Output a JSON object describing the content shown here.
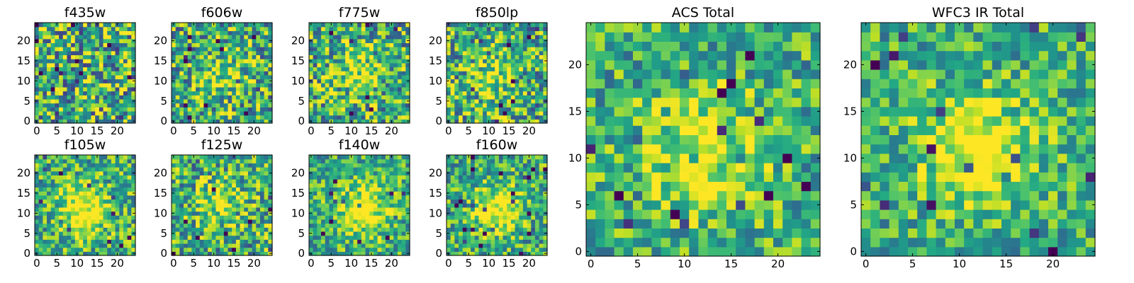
{
  "chart_data": [
    {
      "type": "heatmap",
      "title": "f435w",
      "xticks": [
        "0",
        "5",
        "10",
        "15",
        "20"
      ],
      "yticks": [
        "0",
        "5",
        "10",
        "15",
        "20"
      ],
      "xlim": [
        0,
        24
      ],
      "ylim": [
        0,
        24
      ],
      "grid": false,
      "colormap": "viridis",
      "blob": {
        "cx": 12,
        "cy": 12,
        "amp": 0.05,
        "sigma": 4
      },
      "noise": 0.45,
      "seed": 3
    },
    {
      "type": "heatmap",
      "title": "f606w",
      "xticks": [
        "0",
        "5",
        "10",
        "15",
        "20"
      ],
      "yticks": [
        "0",
        "5",
        "10",
        "15",
        "20"
      ],
      "xlim": [
        0,
        24
      ],
      "ylim": [
        0,
        24
      ],
      "grid": false,
      "colormap": "viridis",
      "blob": {
        "cx": 12,
        "cy": 12,
        "amp": 0.25,
        "sigma": 4
      },
      "noise": 0.4,
      "seed": 7
    },
    {
      "type": "heatmap",
      "title": "f775w",
      "xticks": [
        "0",
        "5",
        "10",
        "15",
        "20"
      ],
      "yticks": [
        "0",
        "5",
        "10",
        "15",
        "20"
      ],
      "xlim": [
        0,
        24
      ],
      "ylim": [
        0,
        24
      ],
      "grid": false,
      "colormap": "viridis",
      "blob": {
        "cx": 12,
        "cy": 12,
        "amp": 0.3,
        "sigma": 4
      },
      "noise": 0.4,
      "seed": 11
    },
    {
      "type": "heatmap",
      "title": "f850lp",
      "xticks": [
        "0",
        "5",
        "10",
        "15",
        "20"
      ],
      "yticks": [
        "0",
        "5",
        "10",
        "15",
        "20"
      ],
      "xlim": [
        0,
        24
      ],
      "ylim": [
        0,
        24
      ],
      "grid": false,
      "colormap": "viridis",
      "blob": {
        "cx": 11,
        "cy": 11,
        "amp": 0.25,
        "sigma": 4
      },
      "noise": 0.4,
      "seed": 13
    },
    {
      "type": "heatmap",
      "title": "f105w",
      "xticks": [
        "0",
        "5",
        "10",
        "15",
        "20"
      ],
      "yticks": [
        "0",
        "5",
        "10",
        "15",
        "20"
      ],
      "xlim": [
        0,
        24
      ],
      "ylim": [
        0,
        24
      ],
      "grid": false,
      "colormap": "viridis",
      "blob": {
        "cx": 12,
        "cy": 11,
        "amp": 0.45,
        "sigma": 4.5
      },
      "noise": 0.32,
      "seed": 17
    },
    {
      "type": "heatmap",
      "title": "f125w",
      "xticks": [
        "0",
        "5",
        "10",
        "15",
        "20"
      ],
      "yticks": [
        "0",
        "5",
        "10",
        "15",
        "20"
      ],
      "xlim": [
        0,
        24
      ],
      "ylim": [
        0,
        24
      ],
      "grid": false,
      "colormap": "viridis",
      "blob": {
        "cx": 11,
        "cy": 12,
        "amp": 0.3,
        "sigma": 4
      },
      "noise": 0.38,
      "seed": 19
    },
    {
      "type": "heatmap",
      "title": "f140w",
      "xticks": [
        "0",
        "5",
        "10",
        "15",
        "20"
      ],
      "yticks": [
        "0",
        "5",
        "10",
        "15",
        "20"
      ],
      "xlim": [
        0,
        24
      ],
      "ylim": [
        0,
        24
      ],
      "grid": false,
      "colormap": "viridis",
      "blob": {
        "cx": 13,
        "cy": 11,
        "amp": 0.45,
        "sigma": 4.5
      },
      "noise": 0.3,
      "seed": 23
    },
    {
      "type": "heatmap",
      "title": "f160w",
      "xticks": [
        "0",
        "5",
        "10",
        "15",
        "20"
      ],
      "yticks": [
        "0",
        "5",
        "10",
        "15",
        "20"
      ],
      "xlim": [
        0,
        24
      ],
      "ylim": [
        0,
        24
      ],
      "grid": false,
      "colormap": "viridis",
      "blob": {
        "cx": 12,
        "cy": 11,
        "amp": 0.45,
        "sigma": 4
      },
      "noise": 0.32,
      "seed": 29
    },
    {
      "type": "heatmap",
      "title": "ACS Total",
      "xticks": [
        "0",
        "5",
        "10",
        "15",
        "20"
      ],
      "yticks": [
        "0",
        "5",
        "10",
        "15",
        "20"
      ],
      "xlim": [
        0,
        24
      ],
      "ylim": [
        0,
        24
      ],
      "grid": false,
      "colormap": "viridis",
      "blob": {
        "cx": 12,
        "cy": 11,
        "amp": 0.35,
        "sigma": 4.5
      },
      "noise": 0.3,
      "seed": 31
    },
    {
      "type": "heatmap",
      "title": "WFC3 IR Total",
      "xticks": [
        "0",
        "5",
        "10",
        "15",
        "20"
      ],
      "yticks": [
        "0",
        "5",
        "10",
        "15",
        "20"
      ],
      "xlim": [
        0,
        24
      ],
      "ylim": [
        0,
        24
      ],
      "grid": false,
      "colormap": "viridis",
      "blob": {
        "cx": 12,
        "cy": 11,
        "amp": 0.5,
        "sigma": 4
      },
      "noise": 0.28,
      "seed": 37
    }
  ]
}
